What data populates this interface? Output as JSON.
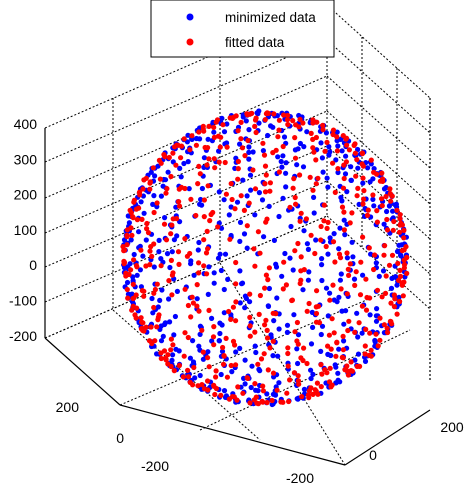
{
  "chart_data": {
    "type": "scatter",
    "dimensions": 3,
    "title": "",
    "xlabel": "",
    "ylabel": "",
    "zlabel": "",
    "grid": true,
    "legend_position": "top",
    "z_ticks": [
      "400",
      "300",
      "200",
      "100",
      "0",
      "-100",
      "-200"
    ],
    "left_ticks": [
      "200",
      "0",
      "-200"
    ],
    "right_ticks": [
      "200",
      "0",
      "-200"
    ],
    "zlim": [
      -250,
      450
    ],
    "shape": "sphere",
    "center": [
      0,
      0,
      100
    ],
    "radius": 330,
    "series": [
      {
        "name": "minimized data",
        "color": "#0000ff",
        "points_visible": 900
      },
      {
        "name": "fitted data",
        "color": "#ff0000",
        "points_visible": 800
      }
    ]
  }
}
